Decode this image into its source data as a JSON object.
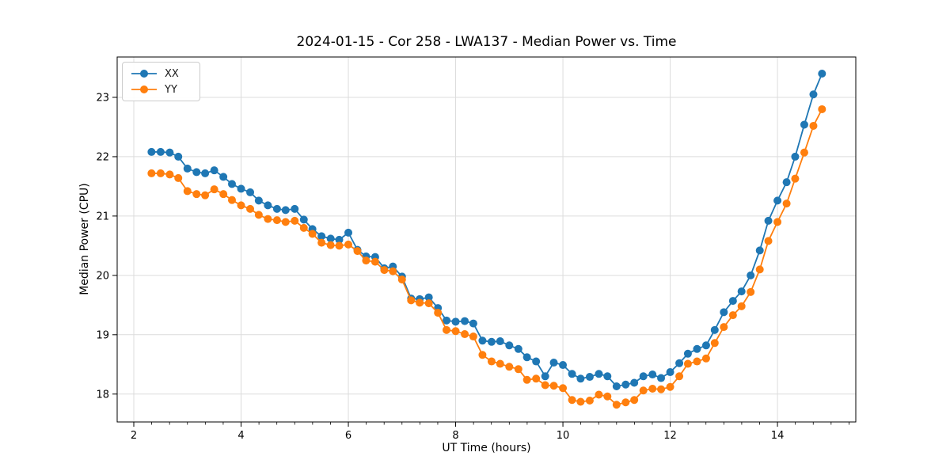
{
  "chart_data": {
    "type": "line",
    "title": "2024-01-15 - Cor 258 - LWA137 - Median Power vs. Time",
    "xlabel": "UT Time (hours)",
    "ylabel": "Median Power (CPU)",
    "xlim": [
      1.69,
      15.46
    ],
    "ylim": [
      17.53,
      23.68
    ],
    "x_ticks": [
      2,
      4,
      6,
      8,
      10,
      12,
      14
    ],
    "x_minor_tick_interval": 0.3333,
    "y_ticks": [
      18,
      19,
      20,
      21,
      22,
      23
    ],
    "grid": "major-only",
    "grid_color": "#dcdcdc",
    "legend_position": "upper-left",
    "x": [
      2.33,
      2.5,
      2.67,
      2.83,
      3.0,
      3.17,
      3.33,
      3.5,
      3.67,
      3.83,
      4.0,
      4.17,
      4.33,
      4.5,
      4.67,
      4.83,
      5.0,
      5.17,
      5.33,
      5.5,
      5.67,
      5.83,
      6.0,
      6.17,
      6.33,
      6.5,
      6.67,
      6.83,
      7.0,
      7.17,
      7.33,
      7.5,
      7.67,
      7.83,
      8.0,
      8.17,
      8.33,
      8.5,
      8.67,
      8.83,
      9.0,
      9.17,
      9.33,
      9.5,
      9.67,
      9.83,
      10.0,
      10.17,
      10.33,
      10.5,
      10.67,
      10.83,
      11.0,
      11.17,
      11.33,
      11.5,
      11.67,
      11.83,
      12.0,
      12.17,
      12.33,
      12.5,
      12.67,
      12.83,
      13.0,
      13.17,
      13.33,
      13.5,
      13.67,
      13.83,
      14.0,
      14.17,
      14.33,
      14.5,
      14.67,
      14.83
    ],
    "series": [
      {
        "name": "XX",
        "color": "#1f77b4",
        "marker": "circle",
        "values": [
          22.08,
          22.08,
          22.07,
          22.0,
          21.8,
          21.74,
          21.72,
          21.77,
          21.66,
          21.54,
          21.46,
          21.4,
          21.26,
          21.18,
          21.12,
          21.1,
          21.12,
          20.94,
          20.78,
          20.66,
          20.62,
          20.6,
          20.72,
          20.43,
          20.32,
          20.31,
          20.12,
          20.15,
          19.98,
          19.61,
          19.6,
          19.63,
          19.45,
          19.24,
          19.22,
          19.23,
          19.19,
          18.9,
          18.88,
          18.89,
          18.82,
          18.76,
          18.62,
          18.55,
          18.3,
          18.53,
          18.49,
          18.34,
          18.26,
          18.29,
          18.34,
          18.3,
          18.13,
          18.16,
          18.19,
          18.3,
          18.33,
          18.27,
          18.37,
          18.52,
          18.68,
          18.76,
          18.82,
          19.08,
          19.38,
          19.57,
          19.73,
          20.0,
          20.42,
          20.92,
          21.26,
          21.57,
          22.0,
          22.54,
          23.05,
          23.4
        ]
      },
      {
        "name": "YY",
        "color": "#ff7f0e",
        "marker": "circle",
        "values": [
          21.72,
          21.72,
          21.7,
          21.64,
          21.42,
          21.37,
          21.35,
          21.45,
          21.37,
          21.27,
          21.18,
          21.12,
          21.02,
          20.95,
          20.93,
          20.9,
          20.92,
          20.8,
          20.7,
          20.55,
          20.51,
          20.5,
          20.52,
          20.41,
          20.25,
          20.23,
          20.09,
          20.07,
          19.93,
          19.58,
          19.54,
          19.53,
          19.37,
          19.08,
          19.06,
          19.01,
          18.97,
          18.66,
          18.55,
          18.51,
          18.46,
          18.42,
          18.24,
          18.26,
          18.15,
          18.14,
          18.1,
          17.9,
          17.87,
          17.89,
          17.99,
          17.96,
          17.82,
          17.86,
          17.9,
          18.06,
          18.09,
          18.08,
          18.12,
          18.3,
          18.51,
          18.55,
          18.6,
          18.86,
          19.13,
          19.33,
          19.48,
          19.72,
          20.1,
          20.58,
          20.9,
          21.21,
          21.63,
          22.07,
          22.52,
          22.8
        ]
      }
    ]
  }
}
